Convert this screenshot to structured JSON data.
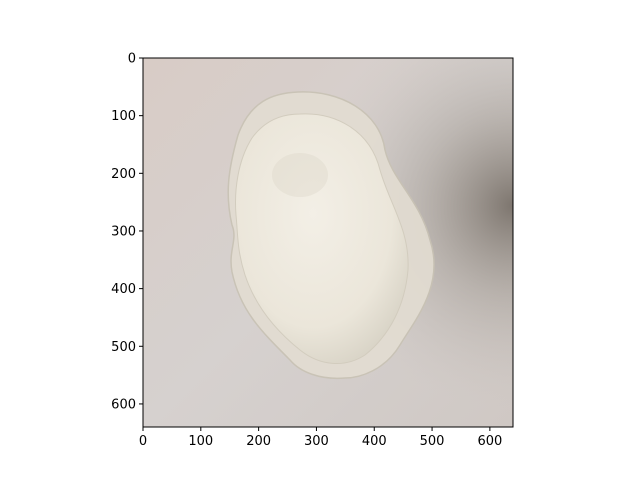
{
  "figure": {
    "image_subject": "translucent pale oval object lying on a light gray surface",
    "colors": {
      "background": "#ffffff",
      "surface": "#d9d3cf",
      "object": "#ebe6da",
      "object_edge": "#cfcabb",
      "axis": "#000000"
    },
    "x_axis": {
      "range": [
        0,
        640
      ],
      "ticks": [
        "0",
        "100",
        "200",
        "300",
        "400",
        "500",
        "600"
      ],
      "tick_values": [
        0,
        100,
        200,
        300,
        400,
        500,
        600
      ]
    },
    "y_axis": {
      "range": [
        0,
        640
      ],
      "inverted": true,
      "ticks": [
        "0",
        "100",
        "200",
        "300",
        "400",
        "500",
        "600"
      ],
      "tick_values": [
        0,
        100,
        200,
        300,
        400,
        500,
        600
      ]
    }
  }
}
